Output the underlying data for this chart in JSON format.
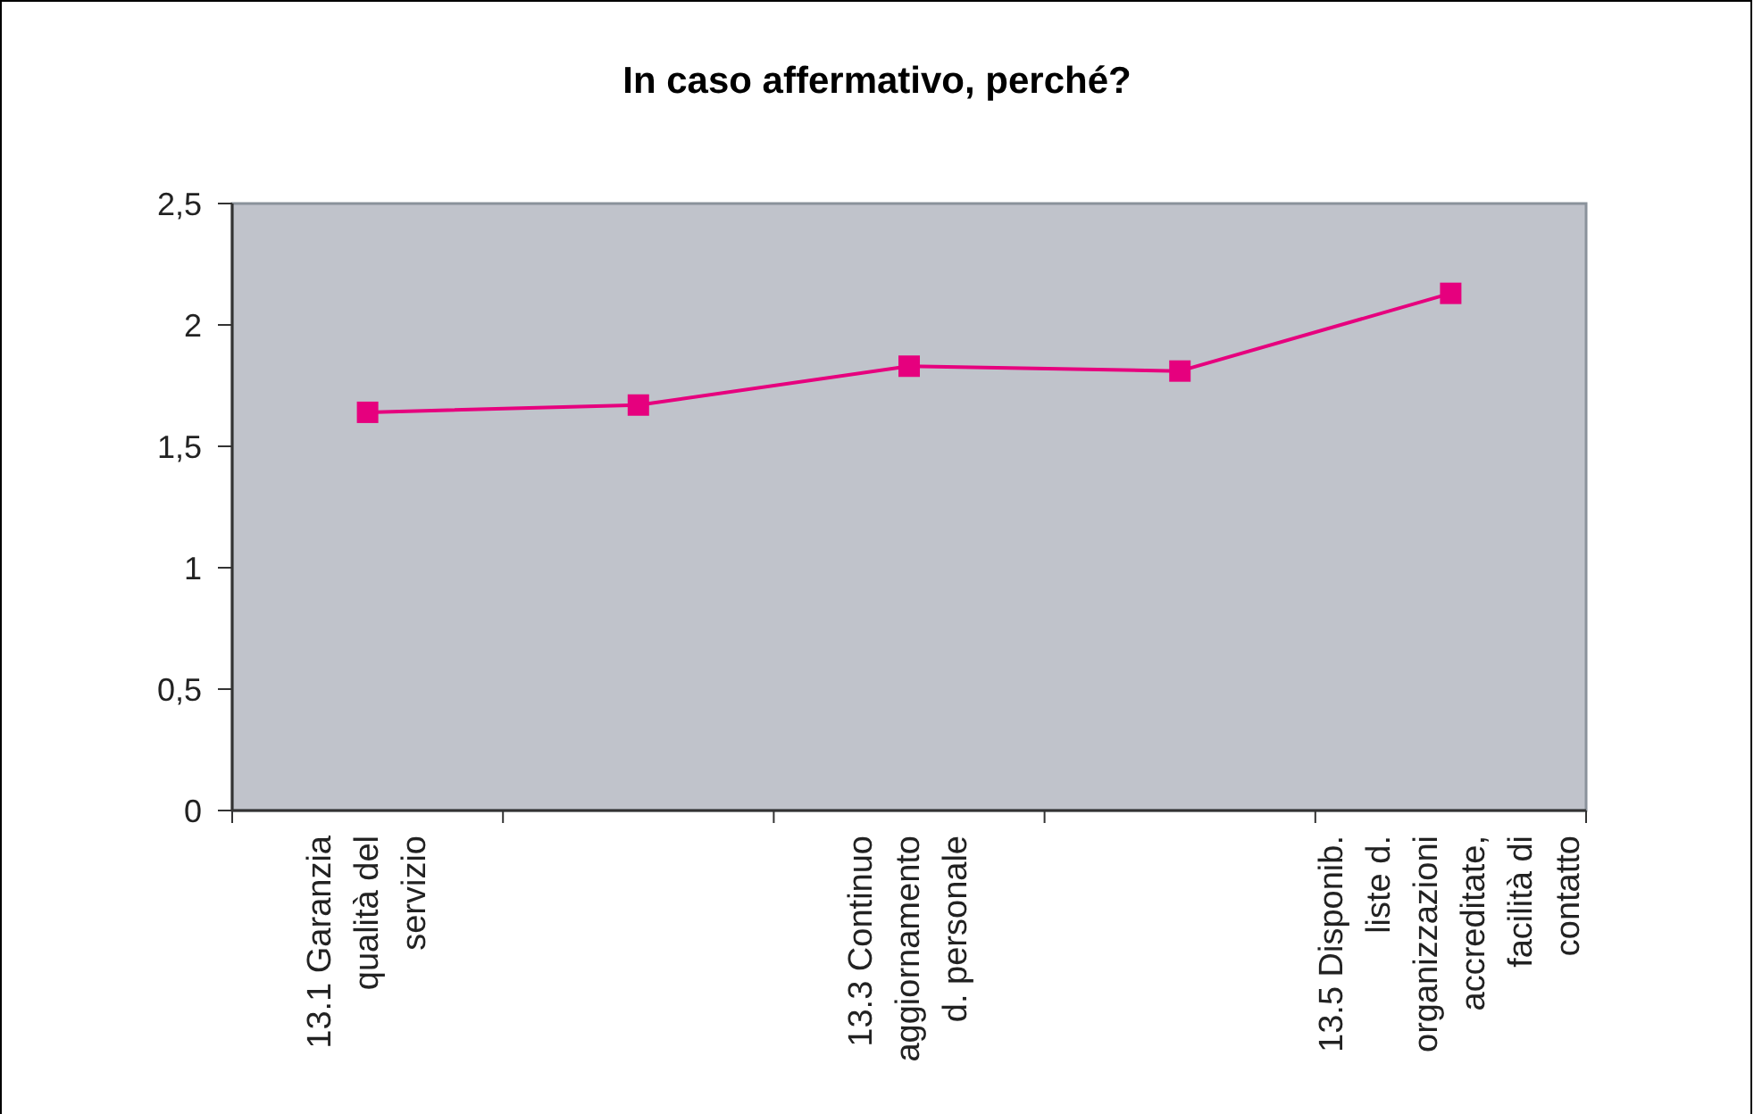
{
  "chart_data": {
    "type": "line",
    "title": "In caso affermativo, perché?",
    "categories": [
      "13.1 Garanzia qualità del servizio",
      null,
      "13.3 Continuo aggiornamento d. personale",
      null,
      "13.5 Disponib. liste d. organizzazioni accreditate, facilità di contatto"
    ],
    "series": [
      {
        "color": "#e6007e",
        "values": [
          1.64,
          1.67,
          1.83,
          1.81,
          2.13
        ]
      }
    ],
    "ylim": [
      0,
      2.5
    ],
    "yticks": [
      0,
      {
        "value": 0.5,
        "label": "0,5"
      },
      1,
      {
        "value": 1.5,
        "label": "1,5"
      },
      2,
      {
        "value": 2.5,
        "label": "2,5"
      }
    ],
    "marker": "square",
    "line_style": "solid"
  }
}
